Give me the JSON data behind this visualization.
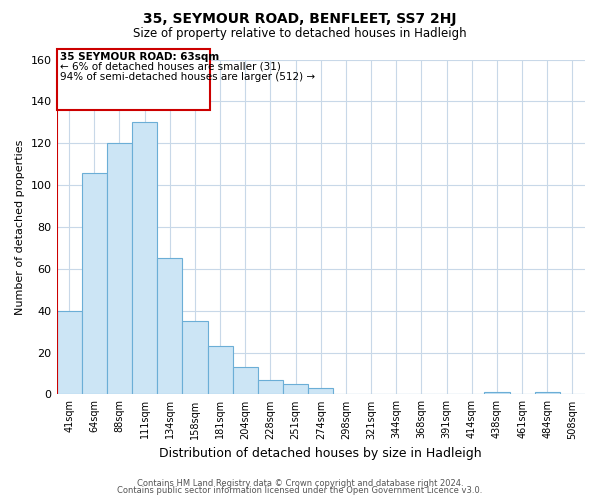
{
  "title": "35, SEYMOUR ROAD, BENFLEET, SS7 2HJ",
  "subtitle": "Size of property relative to detached houses in Hadleigh",
  "xlabel": "Distribution of detached houses by size in Hadleigh",
  "ylabel": "Number of detached properties",
  "footer_line1": "Contains HM Land Registry data © Crown copyright and database right 2024.",
  "footer_line2": "Contains public sector information licensed under the Open Government Licence v3.0.",
  "bar_labels": [
    "41sqm",
    "64sqm",
    "88sqm",
    "111sqm",
    "134sqm",
    "158sqm",
    "181sqm",
    "204sqm",
    "228sqm",
    "251sqm",
    "274sqm",
    "298sqm",
    "321sqm",
    "344sqm",
    "368sqm",
    "391sqm",
    "414sqm",
    "438sqm",
    "461sqm",
    "484sqm",
    "508sqm"
  ],
  "bar_values": [
    40,
    106,
    120,
    130,
    65,
    35,
    23,
    13,
    7,
    5,
    3,
    0,
    0,
    0,
    0,
    0,
    0,
    1,
    0,
    1,
    0
  ],
  "bar_color": "#cce5f5",
  "bar_edge_color": "#6baed6",
  "highlight_color": "#cc0000",
  "ylim": [
    0,
    160
  ],
  "yticks": [
    0,
    20,
    40,
    60,
    80,
    100,
    120,
    140,
    160
  ],
  "annotation_title": "35 SEYMOUR ROAD: 63sqm",
  "annotation_line1": "← 6% of detached houses are smaller (31)",
  "annotation_line2": "94% of semi-detached houses are larger (512) →",
  "background_color": "#ffffff",
  "grid_color": "#c8d8e8",
  "vline_x_index": 0
}
